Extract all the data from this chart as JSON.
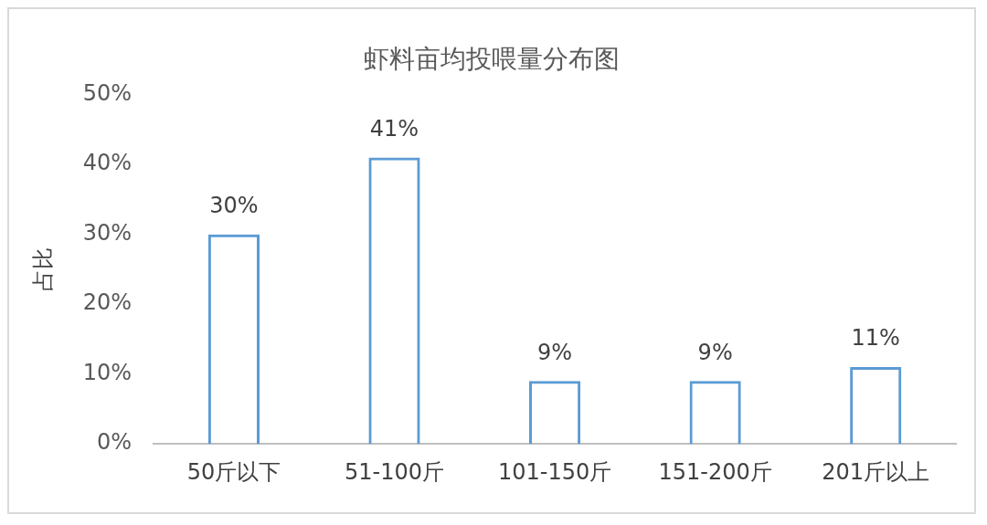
{
  "chart_data": {
    "type": "bar",
    "title": "虾料亩均投喂量分布图",
    "ylabel": "占比",
    "categories": [
      "50斤以下",
      "51-100斤",
      "101-150斤",
      "151-200斤",
      "201斤以上"
    ],
    "values": [
      30,
      41,
      9,
      9,
      11
    ],
    "value_labels": [
      "30%",
      "41%",
      "9%",
      "9%",
      "11%"
    ],
    "color": "#5b9bd5",
    "ylim": [
      0,
      50
    ],
    "yticks": [
      {
        "value": 0,
        "label": "0%"
      },
      {
        "value": 10,
        "label": "10%"
      },
      {
        "value": 20,
        "label": "20%"
      },
      {
        "value": 30,
        "label": "30%"
      },
      {
        "value": 40,
        "label": "40%"
      },
      {
        "value": 50,
        "label": "50%"
      }
    ],
    "grid": false,
    "legend": false
  }
}
